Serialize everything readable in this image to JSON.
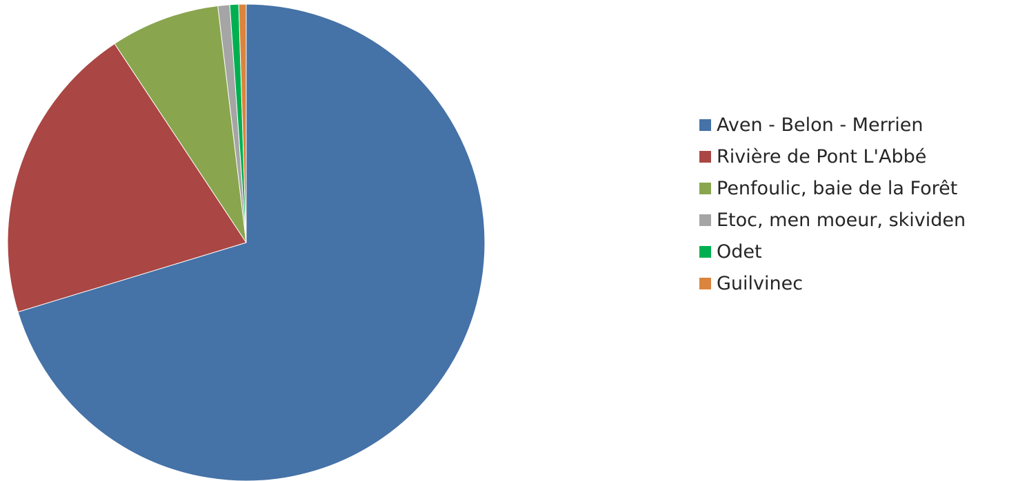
{
  "chart_data": {
    "type": "pie",
    "title": "",
    "start_angle_deg": 0,
    "direction": "clockwise",
    "legend_position": "right",
    "slices": [
      {
        "label": "Aven - Belon - Merrien",
        "value": 70.3,
        "color": "#4572A7"
      },
      {
        "label": "Rivière de Pont L'Abbé",
        "value": 20.4,
        "color": "#AA4643"
      },
      {
        "label": "Penfoulic, baie de la Forêt",
        "value": 7.4,
        "color": "#89A54E"
      },
      {
        "label": "Etoc, men moeur, skividen",
        "value": 0.8,
        "color": "#A5A5A5"
      },
      {
        "label": "Odet",
        "value": 0.6,
        "color": "#00B050"
      },
      {
        "label": "Guilvinec",
        "value": 0.5,
        "color": "#DB843D"
      }
    ]
  }
}
